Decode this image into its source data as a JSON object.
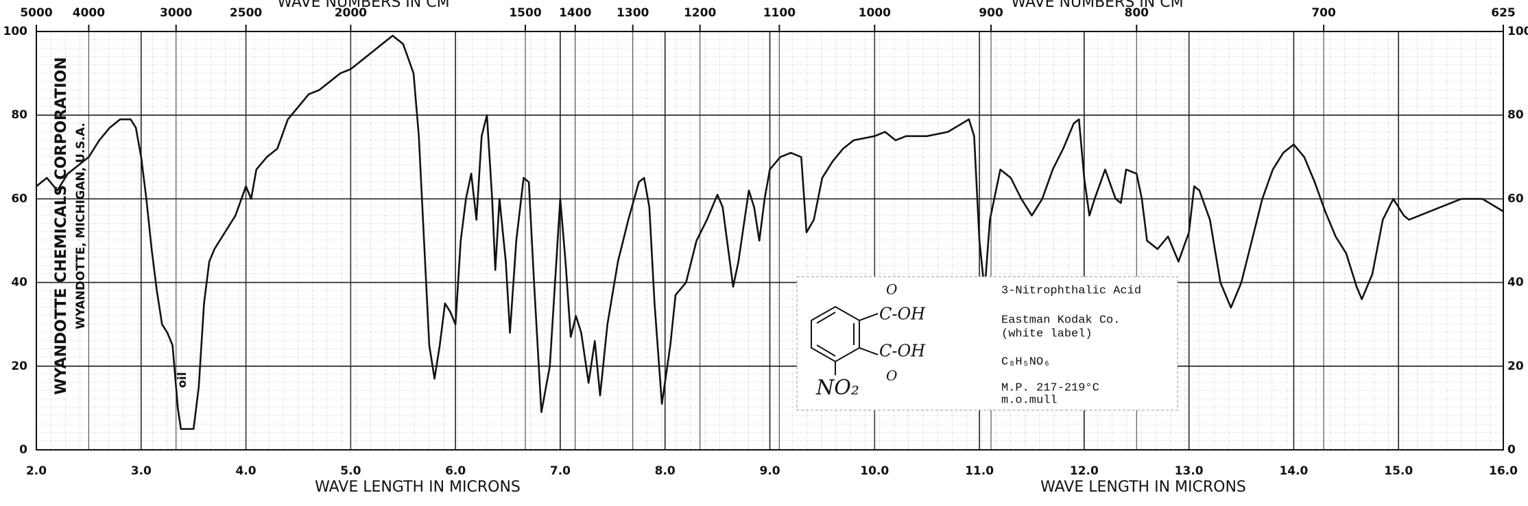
{
  "chart_data": {
    "type": "line",
    "top_axis_labels": [
      "WAVE NUMBERS IN CM",
      "WAVE NUMBERS IN CM"
    ],
    "x_axis_labels": [
      "WAVE LENGTH IN MICRONS",
      "WAVE LENGTH IN MICRONS"
    ],
    "company": [
      "WYANDOTTE CHEMICALS CORPORATION",
      "WYANDOTTE, MICHIGAN, U.S.A."
    ],
    "annotation": "oil",
    "structure": [
      "O",
      "C-OH",
      "C-OH",
      "O",
      "NO₂"
    ],
    "sample": [
      "3-Nitrophthalic Acid",
      "Eastman Kodak Co.",
      "(white label)",
      "C₈H₅NO₆",
      "M.P. 217-219°C",
      "m.o.mull"
    ],
    "color": "#111111",
    "grid": true,
    "xlim": [
      2,
      16
    ],
    "ylim": [
      0,
      100
    ],
    "xticks": [
      {
        "value": 2,
        "label": "2.0"
      },
      {
        "value": 3,
        "label": "3.0"
      },
      {
        "value": 4,
        "label": "4.0"
      },
      {
        "value": 5,
        "label": "5.0"
      },
      {
        "value": 6,
        "label": "6.0"
      },
      {
        "value": 7,
        "label": "7.0"
      },
      {
        "value": 8,
        "label": "8.0"
      },
      {
        "value": 9,
        "label": "9.0"
      },
      {
        "value": 10,
        "label": "10.0"
      },
      {
        "value": 11,
        "label": "11.0"
      },
      {
        "value": 12,
        "label": "12.0"
      },
      {
        "value": 13,
        "label": "13.0"
      },
      {
        "value": 14,
        "label": "14.0"
      },
      {
        "value": 15,
        "label": "15.0"
      },
      {
        "value": 16,
        "label": "16.0"
      }
    ],
    "yticks": [
      0,
      20,
      40,
      60,
      80,
      100
    ],
    "x2_reciprocal": 10000,
    "x2ticks": [
      5000,
      4000,
      3000,
      2500,
      2000,
      1500,
      1400,
      1300,
      1200,
      1100,
      1000,
      900,
      800,
      700,
      625
    ],
    "x": [
      2.0,
      2.1,
      2.2,
      2.3,
      2.4,
      2.5,
      2.6,
      2.7,
      2.8,
      2.9,
      2.95,
      3.0,
      3.05,
      3.1,
      3.15,
      3.2,
      3.25,
      3.3,
      3.35,
      3.38,
      3.45,
      3.5,
      3.55,
      3.6,
      3.65,
      3.7,
      3.8,
      3.9,
      4.0,
      4.05,
      4.1,
      4.2,
      4.3,
      4.4,
      4.5,
      4.6,
      4.7,
      4.8,
      4.9,
      5.0,
      5.1,
      5.2,
      5.3,
      5.4,
      5.5,
      5.6,
      5.65,
      5.7,
      5.75,
      5.8,
      5.85,
      5.9,
      5.95,
      6.0,
      6.05,
      6.1,
      6.15,
      6.2,
      6.25,
      6.3,
      6.35,
      6.38,
      6.42,
      6.48,
      6.52,
      6.58,
      6.65,
      6.7,
      6.75,
      6.82,
      6.9,
      6.95,
      7.0,
      7.05,
      7.1,
      7.15,
      7.2,
      7.27,
      7.33,
      7.38,
      7.45,
      7.55,
      7.65,
      7.75,
      7.8,
      7.85,
      7.9,
      7.97,
      8.05,
      8.1,
      8.2,
      8.3,
      8.4,
      8.5,
      8.55,
      8.65,
      8.7,
      8.8,
      8.85,
      8.9,
      8.95,
      9.0,
      9.1,
      9.2,
      9.3,
      9.35,
      9.42,
      9.5,
      9.6,
      9.7,
      9.8,
      10.0,
      10.1,
      10.2,
      10.3,
      10.5,
      10.7,
      10.9,
      10.95,
      11.0,
      11.05,
      11.1,
      11.2,
      11.3,
      11.4,
      11.5,
      11.6,
      11.7,
      11.8,
      11.9,
      11.95,
      12.0,
      12.05,
      12.1,
      12.2,
      12.3,
      12.35,
      12.4,
      12.5,
      12.55,
      12.6,
      12.7,
      12.8,
      12.9,
      13.0,
      13.05,
      13.1,
      13.2,
      13.3,
      13.4,
      13.5,
      13.6,
      13.7,
      13.8,
      13.9,
      14.0,
      14.1,
      14.2,
      14.3,
      14.4,
      14.5,
      14.6,
      14.65,
      14.75,
      14.85,
      14.95,
      15.05,
      15.1,
      15.2,
      15.4,
      15.6,
      15.8,
      16.0
    ],
    "values": [
      63,
      65,
      62,
      66,
      68,
      70,
      74,
      77,
      79,
      79,
      77,
      70,
      60,
      48,
      38,
      30,
      28,
      25,
      10,
      5,
      5,
      5,
      15,
      35,
      45,
      48,
      52,
      56,
      63,
      60,
      67,
      70,
      72,
      79,
      82,
      85,
      86,
      88,
      90,
      91,
      93,
      95,
      97,
      99,
      97,
      90,
      75,
      50,
      25,
      17,
      25,
      35,
      33,
      30,
      50,
      60,
      66,
      55,
      75,
      80,
      60,
      43,
      60,
      45,
      28,
      50,
      65,
      64,
      40,
      9,
      20,
      40,
      60,
      45,
      27,
      32,
      28,
      16,
      26,
      13,
      30,
      45,
      55,
      64,
      65,
      58,
      35,
      11,
      25,
      37,
      40,
      50,
      55,
      61,
      58,
      39,
      45,
      62,
      58,
      50,
      60,
      67,
      70,
      71,
      70,
      52,
      55,
      65,
      69,
      72,
      74,
      75,
      76,
      74,
      75,
      75,
      76,
      79,
      75,
      50,
      38,
      55,
      67,
      65,
      60,
      56,
      60,
      67,
      72,
      78,
      79,
      65,
      56,
      60,
      67,
      60,
      59,
      67,
      66,
      60,
      50,
      48,
      51,
      45,
      52,
      63,
      62,
      55,
      40,
      34,
      40,
      50,
      60,
      67,
      71,
      73,
      70,
      64,
      57,
      51,
      47,
      39,
      36,
      42,
      55,
      60,
      56,
      55,
      56,
      58,
      60,
      60,
      57
    ]
  }
}
